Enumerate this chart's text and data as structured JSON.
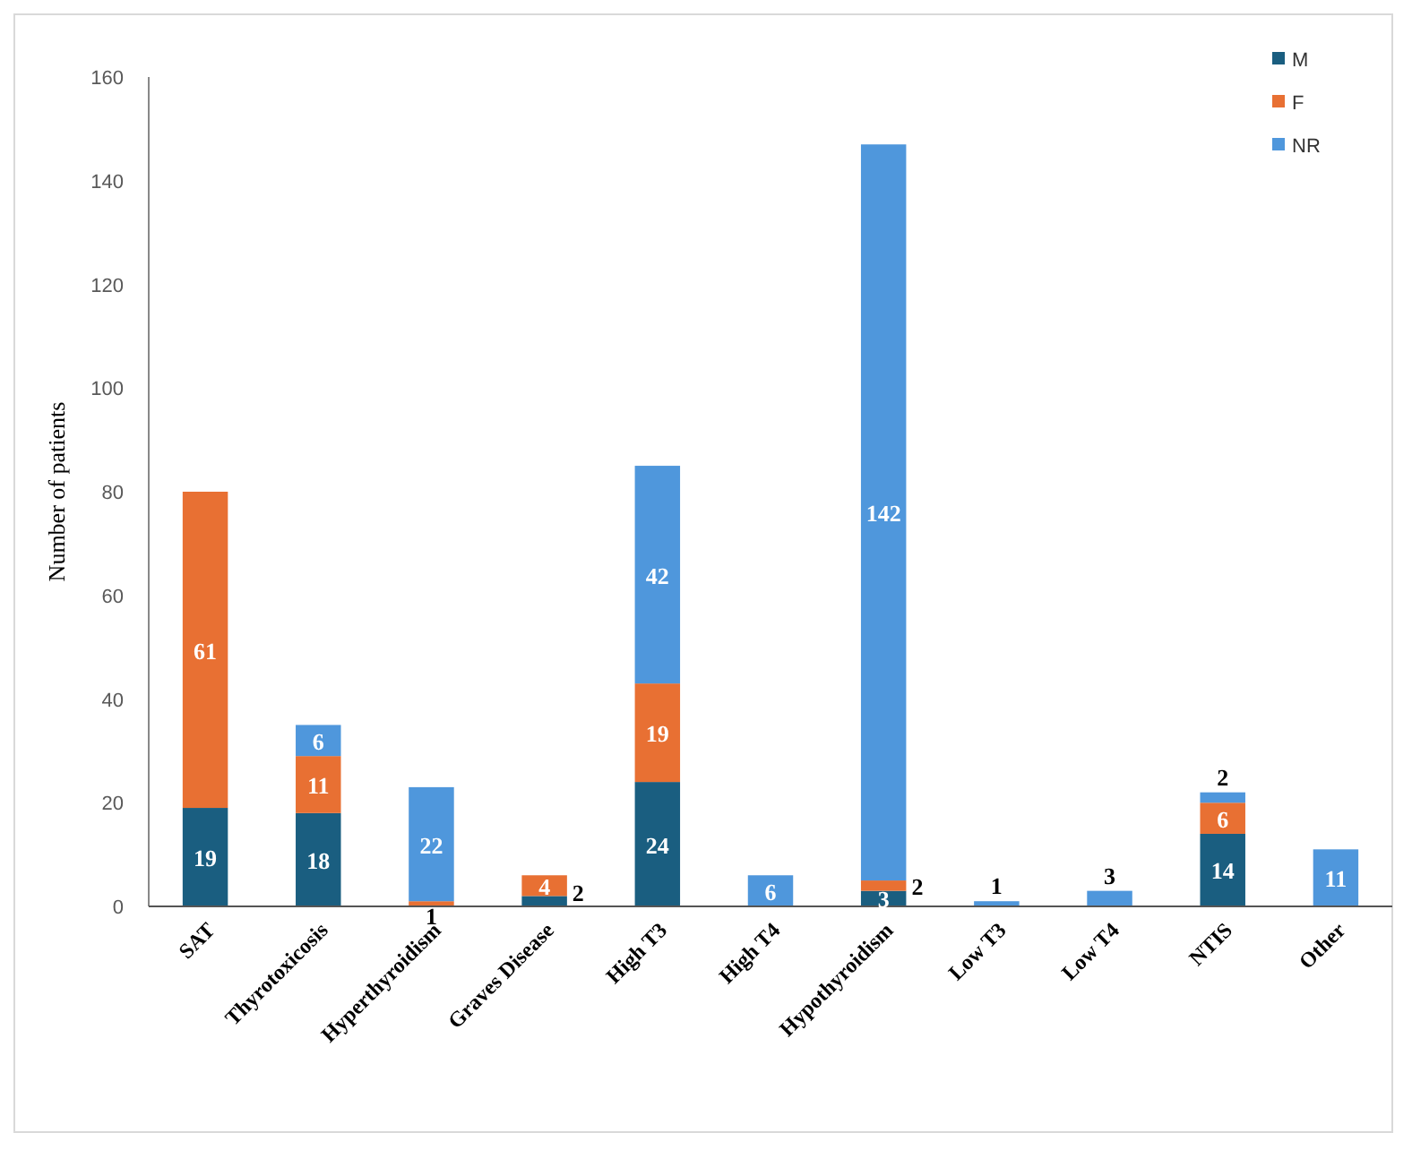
{
  "chart_data": {
    "type": "bar",
    "stacked": true,
    "ylabel": "Number of patients",
    "categories": [
      "SAT",
      "Thyrotoxicosis",
      "Hyperthyroidism",
      "Graves Disease",
      "High T3",
      "High T4",
      "Hypothyroidism",
      "Low T3",
      "Low T4",
      "NTIS",
      "Other"
    ],
    "series": [
      {
        "name": "M",
        "color": "#1a5e80",
        "values": [
          19,
          18,
          0,
          2,
          24,
          0,
          3,
          0,
          0,
          14,
          0
        ],
        "value_labels": [
          "19",
          "18",
          null,
          "2",
          "24",
          null,
          "3",
          null,
          null,
          "14",
          null
        ]
      },
      {
        "name": "F",
        "color": "#e87033",
        "values": [
          61,
          11,
          1,
          4,
          19,
          0,
          2,
          0,
          0,
          6,
          0
        ],
        "value_labels": [
          "61",
          "11",
          "1",
          "4",
          "19",
          null,
          "2",
          null,
          null,
          "6",
          null
        ]
      },
      {
        "name": "NR",
        "color": "#4f97dc",
        "values": [
          0,
          6,
          22,
          0,
          42,
          6,
          142,
          1,
          3,
          2,
          11
        ],
        "value_labels": [
          null,
          "6",
          "22",
          null,
          "42",
          "6",
          "142",
          "1",
          "3",
          "2",
          "11"
        ]
      }
    ],
    "ylim": [
      0,
      160
    ],
    "yticks": [
      0,
      20,
      40,
      60,
      80,
      100,
      120,
      140,
      160
    ],
    "grid": false,
    "legend": "top right"
  }
}
